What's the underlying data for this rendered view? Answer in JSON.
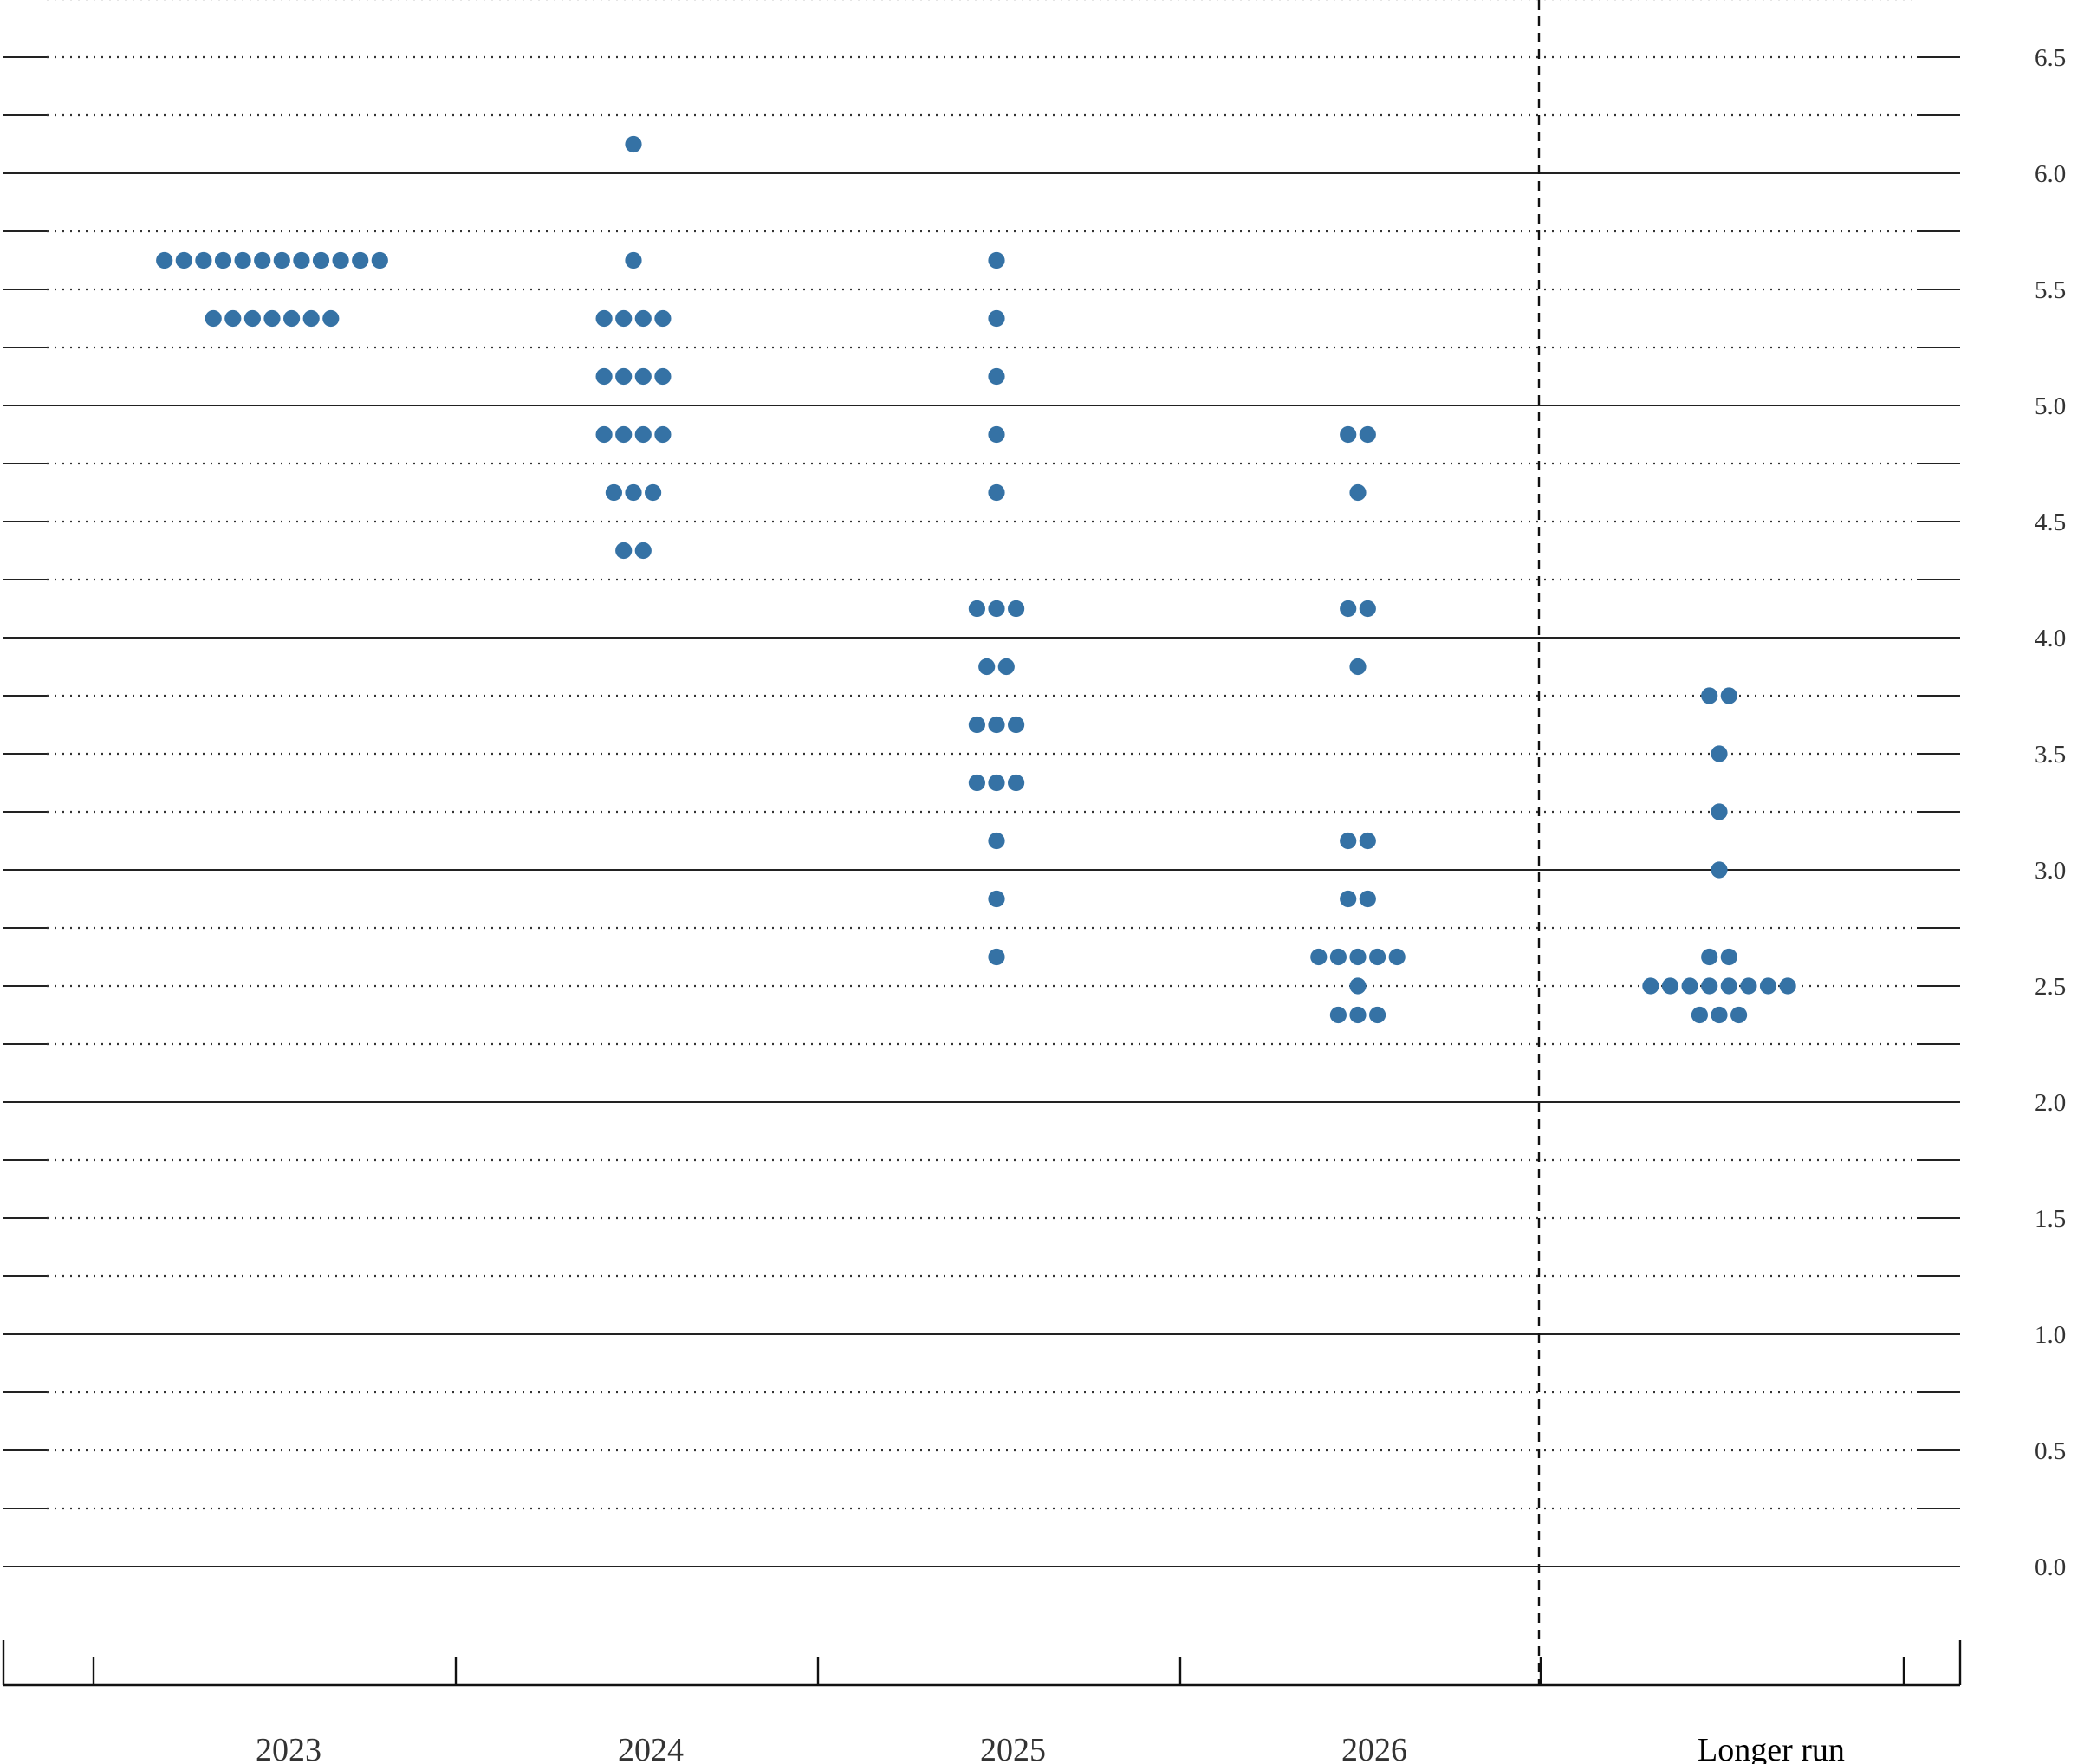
{
  "chart_data": {
    "type": "scatter",
    "title": "",
    "xlabel": "",
    "ylabel": "",
    "ylim": [
      -0.75,
      6.75
    ],
    "grid": true,
    "y_axis_side": "right",
    "y_ticks": [
      "0.0",
      "0.5",
      "1.0",
      "1.5",
      "2.0",
      "2.5",
      "3.0",
      "3.5",
      "4.0",
      "4.5",
      "5.0",
      "5.5",
      "6.0",
      "6.5"
    ],
    "categories": [
      "2023",
      "2024",
      "2025",
      "2026",
      "Longer run"
    ],
    "dot_color": "#3572a5",
    "series": [
      {
        "category": "2023",
        "points": [
          {
            "y": 5.625,
            "count": 12
          },
          {
            "y": 5.375,
            "count": 7
          }
        ]
      },
      {
        "category": "2024",
        "points": [
          {
            "y": 6.125,
            "count": 1
          },
          {
            "y": 5.625,
            "count": 1
          },
          {
            "y": 5.375,
            "count": 4
          },
          {
            "y": 5.125,
            "count": 4
          },
          {
            "y": 4.875,
            "count": 4
          },
          {
            "y": 4.625,
            "count": 3
          },
          {
            "y": 4.375,
            "count": 2
          }
        ]
      },
      {
        "category": "2025",
        "points": [
          {
            "y": 5.625,
            "count": 1
          },
          {
            "y": 5.375,
            "count": 1
          },
          {
            "y": 5.125,
            "count": 1
          },
          {
            "y": 4.875,
            "count": 1
          },
          {
            "y": 4.625,
            "count": 1
          },
          {
            "y": 4.125,
            "count": 3
          },
          {
            "y": 3.875,
            "count": 2
          },
          {
            "y": 3.625,
            "count": 3
          },
          {
            "y": 3.375,
            "count": 3
          },
          {
            "y": 3.125,
            "count": 1
          },
          {
            "y": 2.875,
            "count": 1
          },
          {
            "y": 2.625,
            "count": 1
          }
        ]
      },
      {
        "category": "2026",
        "points": [
          {
            "y": 4.875,
            "count": 2
          },
          {
            "y": 4.625,
            "count": 1
          },
          {
            "y": 4.125,
            "count": 2
          },
          {
            "y": 3.875,
            "count": 1
          },
          {
            "y": 3.125,
            "count": 2
          },
          {
            "y": 2.875,
            "count": 2
          },
          {
            "y": 2.625,
            "count": 5
          },
          {
            "y": 2.5,
            "count": 1
          },
          {
            "y": 2.375,
            "count": 3
          }
        ]
      },
      {
        "category": "Longer run",
        "points": [
          {
            "y": 3.75,
            "count": 2
          },
          {
            "y": 3.5,
            "count": 1
          },
          {
            "y": 3.25,
            "count": 1
          },
          {
            "y": 3.0,
            "count": 1
          },
          {
            "y": 2.625,
            "count": 2
          },
          {
            "y": 2.5,
            "count": 8
          },
          {
            "y": 2.375,
            "count": 3
          }
        ]
      }
    ]
  }
}
